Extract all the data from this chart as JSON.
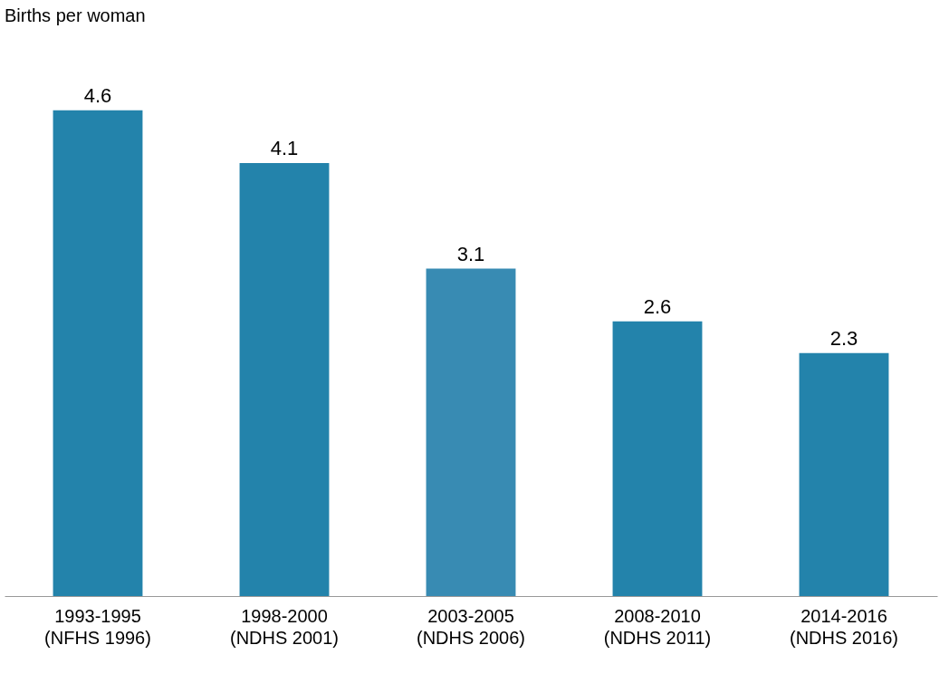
{
  "chart_data": {
    "type": "bar",
    "annotations": [
      "Births per woman"
    ],
    "categories": [
      "1993-1995\n(NFHS 1996)",
      "1998-2000\n(NDHS 2001)",
      "2003-2005\n(NDHS 2006)",
      "2008-2010\n(NDHS 2011)",
      "2014-2016\n(NDHS 2016)"
    ],
    "values": [
      4.6,
      4.1,
      3.1,
      2.6,
      2.3
    ],
    "colors": [
      "#2383ab",
      "#2383ab",
      "#388bb3",
      "#2383ab",
      "#2383ab"
    ],
    "data_labels": true,
    "grid": false
  }
}
